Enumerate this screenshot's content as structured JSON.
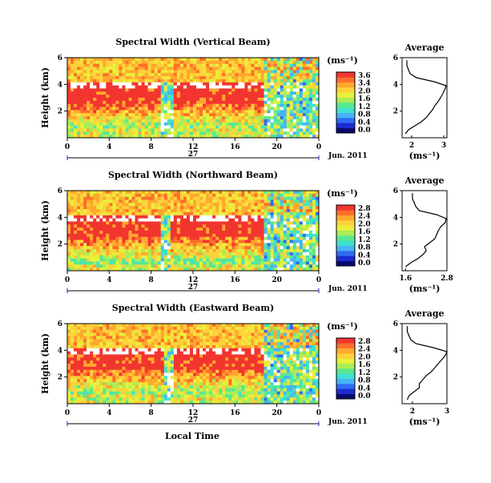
{
  "colors": {
    "scale": [
      "#0a0a6e",
      "#1b2bd0",
      "#2f6cf2",
      "#46b4f5",
      "#3fe0d2",
      "#58e890",
      "#a8ee58",
      "#e8f03a",
      "#ffd23a",
      "#ffa82e",
      "#ff6e2a",
      "#f2352f"
    ],
    "missing": "#ffffff"
  },
  "x_axis_label": "Local Time",
  "date_label": "Jun. 2011",
  "chart_data": [
    {
      "type": "heatmap",
      "title": "Spectral Width (Vertical Beam)",
      "ylabel": "Height (km)",
      "x_ticks": [
        "0",
        "4",
        "8",
        "12",
        "16",
        "20",
        "0"
      ],
      "day_label": "27",
      "y_ticks": [
        "2",
        "4",
        "6"
      ],
      "ylim_km": [
        0,
        6
      ],
      "colorbar": {
        "unit": "(ms⁻¹)",
        "ticks": [
          "3.6",
          "3.4",
          "2.0",
          "1.6",
          "1.2",
          "0.8",
          "0.4",
          "0.0"
        ],
        "range": [
          0.0,
          3.6
        ]
      },
      "average": {
        "title": "Average",
        "xlabel": "(ms⁻¹)",
        "x_ticks": [
          "2",
          "3"
        ],
        "xlim": [
          1.7,
          3.1
        ],
        "y_ticks": [
          "2",
          "4",
          "6"
        ],
        "heights": [
          0.3,
          0.6,
          0.9,
          1.2,
          1.5,
          1.8,
          2.1,
          2.4,
          2.7,
          3.0,
          3.3,
          3.6,
          3.9,
          4.2,
          4.5,
          4.8,
          5.1,
          5.4,
          5.8
        ],
        "values": [
          1.8,
          1.9,
          2.1,
          2.3,
          2.45,
          2.55,
          2.65,
          2.72,
          2.82,
          2.9,
          2.97,
          3.03,
          3.08,
          2.7,
          2.15,
          1.95,
          1.9,
          1.85,
          1.85
        ]
      },
      "field": {
        "cloud_top_km": 3.9,
        "cloud_base_km": 0.6,
        "gap_hours": [
          8.9,
          10.2
        ],
        "clear_after_hours": 18.7
      }
    },
    {
      "type": "heatmap",
      "title": "Spectral Width (Northward Beam)",
      "ylabel": "Height (km)",
      "x_ticks": [
        "0",
        "4",
        "8",
        "12",
        "16",
        "20",
        "0"
      ],
      "day_label": "27",
      "y_ticks": [
        "2",
        "4",
        "6"
      ],
      "ylim_km": [
        0,
        6
      ],
      "colorbar": {
        "unit": "(ms⁻¹)",
        "ticks": [
          "2.8",
          "2.4",
          "2.0",
          "1.6",
          "1.2",
          "0.8",
          "0.4",
          "0.0"
        ],
        "range": [
          0.0,
          2.8
        ]
      },
      "average": {
        "title": "Average",
        "xlabel": "(ms⁻¹)",
        "x_ticks": [
          "1.6",
          "2.8"
        ],
        "xlim": [
          1.5,
          2.8
        ],
        "heights": [
          0.3,
          0.6,
          0.9,
          1.2,
          1.5,
          1.8,
          2.1,
          2.4,
          2.7,
          3.0,
          3.3,
          3.6,
          3.9,
          4.2,
          4.5,
          4.8,
          5.1,
          5.4,
          5.8
        ],
        "values": [
          1.6,
          1.75,
          1.95,
          2.1,
          2.2,
          2.15,
          2.3,
          2.45,
          2.5,
          2.55,
          2.62,
          2.75,
          2.78,
          2.5,
          2.0,
          1.9,
          1.85,
          1.8,
          1.8
        ]
      },
      "field": {
        "cloud_top_km": 3.9,
        "cloud_base_km": 0.5,
        "gap_hours": [
          8.8,
          9.8
        ],
        "clear_after_hours": 18.7
      }
    },
    {
      "type": "heatmap",
      "title": "Spectral Width (Eastward Beam)",
      "ylabel": "Height (km)",
      "x_ticks": [
        "0",
        "4",
        "8",
        "12",
        "16",
        "20",
        "0"
      ],
      "day_label": "27",
      "y_ticks": [
        "2",
        "4",
        "6"
      ],
      "ylim_km": [
        0,
        6
      ],
      "colorbar": {
        "unit": "(ms⁻¹)",
        "ticks": [
          "2.8",
          "2.4",
          "2.0",
          "1.6",
          "1.2",
          "0.8",
          "0.4",
          "0.0"
        ],
        "range": [
          0.0,
          2.8
        ]
      },
      "average": {
        "title": "Average",
        "xlabel": "(ms⁻¹)",
        "x_ticks": [
          "2",
          "3"
        ],
        "xlim": [
          1.7,
          3.0
        ],
        "heights": [
          0.3,
          0.6,
          0.9,
          1.2,
          1.5,
          1.8,
          2.1,
          2.4,
          2.7,
          3.0,
          3.3,
          3.6,
          3.9,
          4.2,
          4.5,
          4.8,
          5.1,
          5.4,
          5.8
        ],
        "values": [
          1.85,
          1.9,
          2.05,
          2.2,
          2.2,
          2.3,
          2.4,
          2.55,
          2.65,
          2.75,
          2.85,
          2.95,
          3.0,
          2.6,
          2.1,
          1.95,
          1.9,
          1.85,
          1.85
        ]
      },
      "field": {
        "cloud_top_km": 3.9,
        "cloud_base_km": 0.6,
        "gap_hours": [
          9.2,
          10.0
        ],
        "clear_after_hours": 18.7
      }
    }
  ]
}
